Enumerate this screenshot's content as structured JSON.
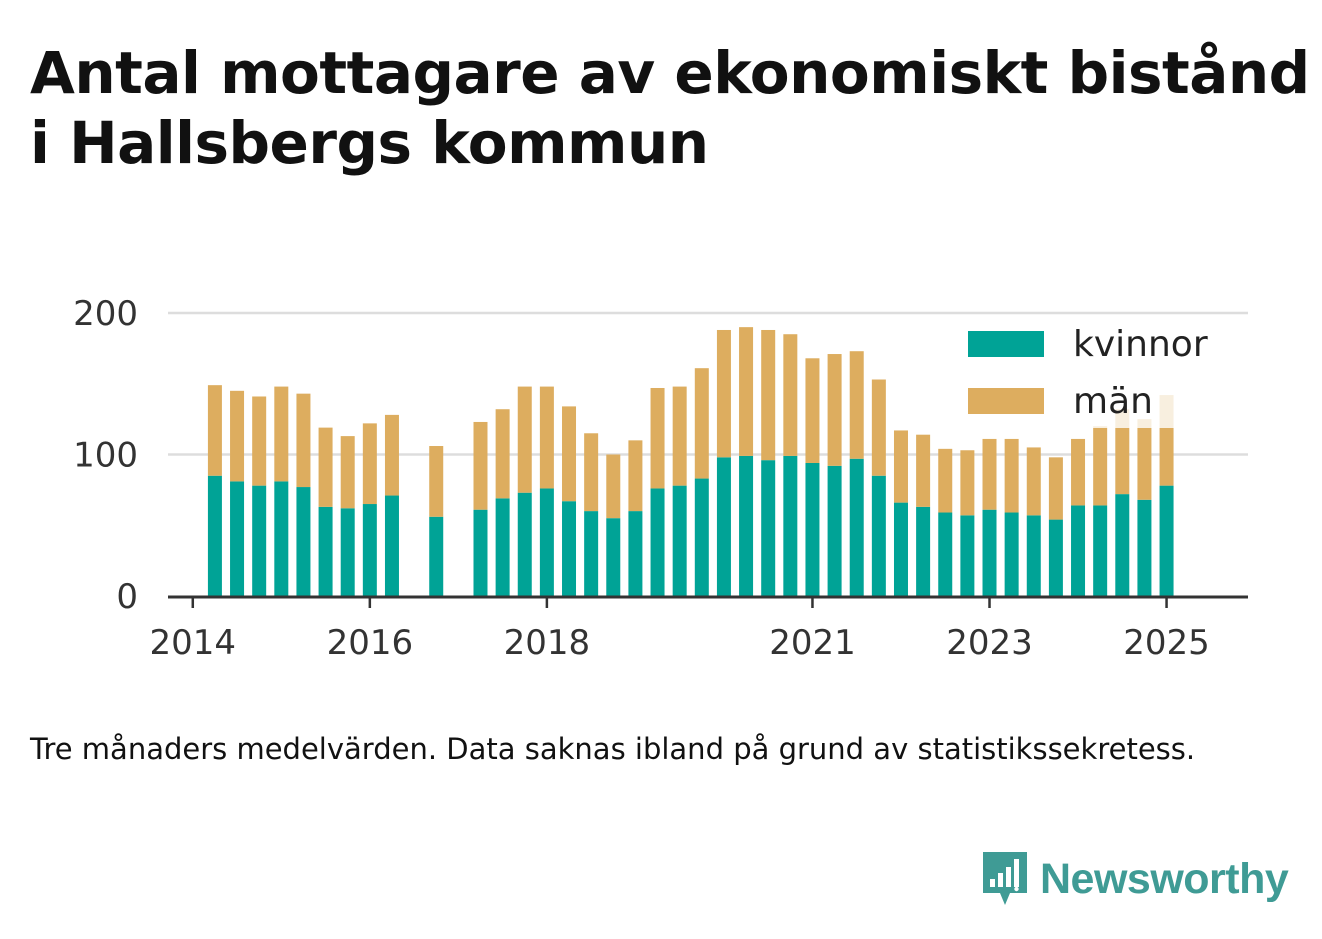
{
  "title_line1": "Antal mottagare av ekonomiskt bistånd",
  "title_line2": "i Hallsbergs kommun",
  "footnote": "Tre månaders medelvärden. Data saknas ibland på grund av statistikssekretess.",
  "brand": {
    "name": "Newsworthy",
    "icon": "newsworthy-logo-icon",
    "color": "#3f9b95"
  },
  "colors": {
    "kvinnor": "#00a396",
    "man": "#ddad5f",
    "grid": "#dddddd",
    "axis": "#333333"
  },
  "chart_data": {
    "type": "bar",
    "stacked": true,
    "y_ticks": [
      0,
      100,
      200
    ],
    "ylim": [
      0,
      200
    ],
    "x_ticks": [
      {
        "label": "2014",
        "x": 2014.0
      },
      {
        "label": "2016",
        "x": 2016.0
      },
      {
        "label": "2018",
        "x": 2018.0
      },
      {
        "label": "2021",
        "x": 2021.0
      },
      {
        "label": "2023",
        "x": 2023.0
      },
      {
        "label": "2025",
        "x": 2025.0
      }
    ],
    "legend": {
      "position": "top-right",
      "entries": [
        "kvinnor",
        "män"
      ]
    },
    "grid": true,
    "bars": [
      {
        "x": 2014.25,
        "kvinnor": 85,
        "man": 64,
        "faded": false
      },
      {
        "x": 2014.5,
        "kvinnor": 81,
        "man": 64,
        "faded": false
      },
      {
        "x": 2014.75,
        "kvinnor": 78,
        "man": 63,
        "faded": false
      },
      {
        "x": 2015.0,
        "kvinnor": 81,
        "man": 67,
        "faded": false
      },
      {
        "x": 2015.25,
        "kvinnor": 77,
        "man": 66,
        "faded": false
      },
      {
        "x": 2015.5,
        "kvinnor": 63,
        "man": 56,
        "faded": false
      },
      {
        "x": 2015.75,
        "kvinnor": 62,
        "man": 51,
        "faded": false
      },
      {
        "x": 2016.0,
        "kvinnor": 65,
        "man": 57,
        "faded": false
      },
      {
        "x": 2016.25,
        "kvinnor": 71,
        "man": 57,
        "faded": false
      },
      {
        "x": 2016.75,
        "kvinnor": 56,
        "man": 50,
        "faded": false
      },
      {
        "x": 2017.25,
        "kvinnor": 61,
        "man": 62,
        "faded": false
      },
      {
        "x": 2017.5,
        "kvinnor": 69,
        "man": 63,
        "faded": false
      },
      {
        "x": 2017.75,
        "kvinnor": 73,
        "man": 75,
        "faded": false
      },
      {
        "x": 2018.0,
        "kvinnor": 76,
        "man": 72,
        "faded": false
      },
      {
        "x": 2018.25,
        "kvinnor": 67,
        "man": 67,
        "faded": false
      },
      {
        "x": 2018.5,
        "kvinnor": 60,
        "man": 55,
        "faded": false
      },
      {
        "x": 2018.75,
        "kvinnor": 55,
        "man": 45,
        "faded": false
      },
      {
        "x": 2019.0,
        "kvinnor": 60,
        "man": 50,
        "faded": false
      },
      {
        "x": 2019.25,
        "kvinnor": 76,
        "man": 71,
        "faded": false
      },
      {
        "x": 2019.5,
        "kvinnor": 78,
        "man": 70,
        "faded": false
      },
      {
        "x": 2019.75,
        "kvinnor": 83,
        "man": 78,
        "faded": false
      },
      {
        "x": 2020.0,
        "kvinnor": 98,
        "man": 90,
        "faded": false
      },
      {
        "x": 2020.25,
        "kvinnor": 99,
        "man": 91,
        "faded": false
      },
      {
        "x": 2020.5,
        "kvinnor": 96,
        "man": 92,
        "faded": false
      },
      {
        "x": 2020.75,
        "kvinnor": 99,
        "man": 86,
        "faded": false
      },
      {
        "x": 2021.0,
        "kvinnor": 94,
        "man": 74,
        "faded": false
      },
      {
        "x": 2021.25,
        "kvinnor": 92,
        "man": 79,
        "faded": false
      },
      {
        "x": 2021.5,
        "kvinnor": 97,
        "man": 76,
        "faded": false
      },
      {
        "x": 2021.75,
        "kvinnor": 85,
        "man": 68,
        "faded": false
      },
      {
        "x": 2022.0,
        "kvinnor": 66,
        "man": 51,
        "faded": false
      },
      {
        "x": 2022.25,
        "kvinnor": 63,
        "man": 51,
        "faded": false
      },
      {
        "x": 2022.5,
        "kvinnor": 59,
        "man": 45,
        "faded": false
      },
      {
        "x": 2022.75,
        "kvinnor": 57,
        "man": 46,
        "faded": false
      },
      {
        "x": 2023.0,
        "kvinnor": 61,
        "man": 50,
        "faded": false
      },
      {
        "x": 2023.25,
        "kvinnor": 59,
        "man": 52,
        "faded": false
      },
      {
        "x": 2023.5,
        "kvinnor": 57,
        "man": 48,
        "faded": false
      },
      {
        "x": 2023.75,
        "kvinnor": 54,
        "man": 44,
        "faded": false
      },
      {
        "x": 2024.0,
        "kvinnor": 64,
        "man": 47,
        "faded": false
      },
      {
        "x": 2024.25,
        "kvinnor": 64,
        "man": 56,
        "faded": false
      },
      {
        "x": 2024.5,
        "kvinnor": 72,
        "man": 60,
        "faded": false
      },
      {
        "x": 2024.75,
        "kvinnor": 68,
        "man": 57,
        "faded": false
      },
      {
        "x": 2025.0,
        "kvinnor": 78,
        "man": 64,
        "faded": false
      }
    ]
  }
}
